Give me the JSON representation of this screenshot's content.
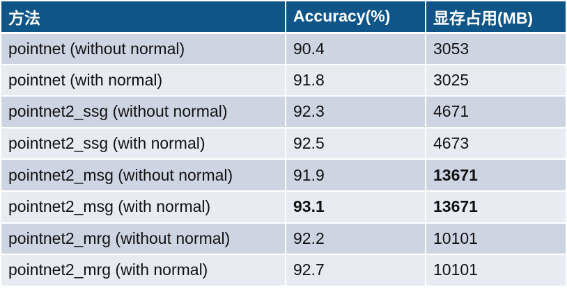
{
  "table": {
    "headers": [
      "方法",
      "Accuracy(%)",
      "显存占用(MB)"
    ],
    "rows": [
      {
        "method": "pointnet (without normal)",
        "accuracy": "90.4",
        "memory": "3053",
        "accuracy_bold": false,
        "memory_bold": false
      },
      {
        "method": "pointnet (with normal)",
        "accuracy": "91.8",
        "memory": "3025",
        "accuracy_bold": false,
        "memory_bold": false
      },
      {
        "method": "pointnet2_ssg (without normal)",
        "accuracy": "92.3",
        "memory": "4671",
        "accuracy_bold": false,
        "memory_bold": false
      },
      {
        "method": "pointnet2_ssg (with normal)",
        "accuracy": "92.5",
        "memory": "4673",
        "accuracy_bold": false,
        "memory_bold": false
      },
      {
        "method": "pointnet2_msg (without normal)",
        "accuracy": "91.9",
        "memory": "13671",
        "accuracy_bold": false,
        "memory_bold": true
      },
      {
        "method": "pointnet2_msg (with normal)",
        "accuracy": "93.1",
        "memory": "13671",
        "accuracy_bold": true,
        "memory_bold": true
      },
      {
        "method": "pointnet2_mrg (without normal)",
        "accuracy": "92.2",
        "memory": "10101",
        "accuracy_bold": false,
        "memory_bold": false
      },
      {
        "method": "pointnet2_mrg (with normal)",
        "accuracy": "92.7",
        "memory": "10101",
        "accuracy_bold": false,
        "memory_bold": false
      }
    ]
  },
  "colors": {
    "header_bg": "#0f5587",
    "row_dark": "#cdd4e2",
    "row_light": "#e8ebf2"
  }
}
